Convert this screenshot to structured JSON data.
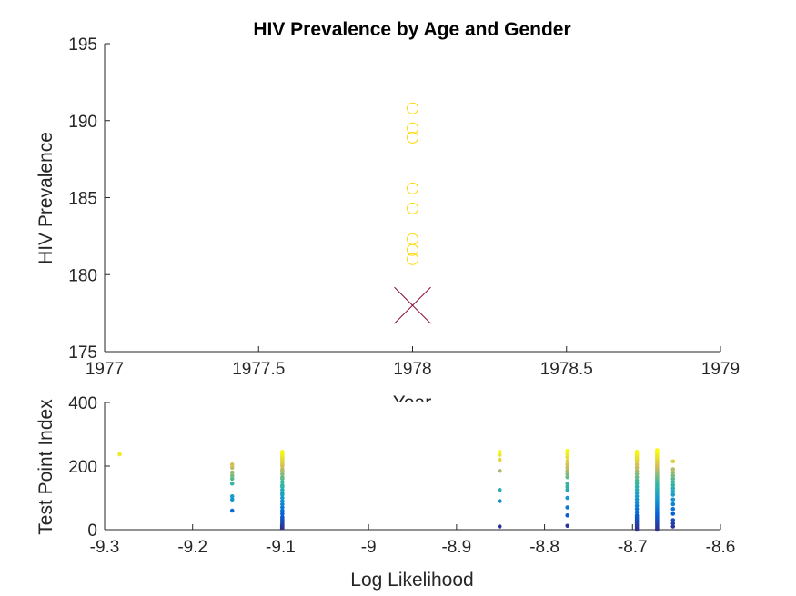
{
  "chart_data": [
    {
      "type": "scatter",
      "title": "HIV Prevalence by Age and Gender",
      "xlabel": "Year",
      "ylabel": "HIV Prevalence",
      "xlim": [
        1977,
        1979
      ],
      "ylim": [
        175,
        195
      ],
      "xticks": [
        "1977",
        "1977.5",
        "1978",
        "1978.5",
        "1979"
      ],
      "yticks": [
        "175",
        "180",
        "185",
        "190",
        "195"
      ],
      "grid": false,
      "series": [
        {
          "marker": "circle",
          "color": "#ffd700",
          "x": [
            1978,
            1978,
            1978,
            1978,
            1978,
            1978,
            1978,
            1978
          ],
          "y": [
            190.8,
            189.5,
            188.9,
            185.6,
            184.3,
            182.3,
            181.6,
            181.0
          ]
        },
        {
          "marker": "x",
          "color": "#8b0a3a",
          "x": [
            1978
          ],
          "y": [
            178.0
          ]
        }
      ]
    },
    {
      "type": "scatter",
      "title": "",
      "xlabel": "Log Likelihood",
      "ylabel": "Test Point Index",
      "xlim": [
        -9.3,
        -8.6
      ],
      "ylim": [
        0,
        400
      ],
      "xticks": [
        "-9.3",
        "-9.2",
        "-9.1",
        "-9",
        "-8.9",
        "-8.8",
        "-8.7",
        "-8.6"
      ],
      "yticks": [
        "0",
        "200",
        "400"
      ],
      "grid": false,
      "colormap": "parula",
      "color_range": [
        0,
        250
      ],
      "columns": [
        {
          "x": -9.283,
          "y": [
            237
          ]
        },
        {
          "x": -9.155,
          "y": [
            60,
            95,
            105,
            145,
            160,
            170,
            180,
            195,
            205
          ]
        },
        {
          "x": -9.098,
          "y": [
            5,
            10,
            15,
            20,
            25,
            30,
            35,
            40,
            50,
            60,
            70,
            80,
            90,
            100,
            110,
            115,
            125,
            135,
            140,
            150,
            160,
            165,
            175,
            185,
            190,
            200,
            205,
            210,
            215,
            220,
            225,
            230,
            235,
            240,
            245
          ]
        },
        {
          "x": -8.851,
          "y": [
            10,
            90,
            125,
            185,
            220,
            235,
            245
          ]
        },
        {
          "x": -8.774,
          "y": [
            12,
            45,
            70,
            100,
            125,
            135,
            145,
            165,
            175,
            185,
            195,
            205,
            215,
            228,
            238,
            248
          ]
        },
        {
          "x": -8.695,
          "y": [
            0,
            5,
            10,
            15,
            20,
            25,
            30,
            35,
            40,
            45,
            55,
            65,
            75,
            85,
            95,
            105,
            115,
            125,
            135,
            145,
            155,
            165,
            175,
            185,
            195,
            205,
            215,
            220,
            225,
            230,
            235,
            240,
            245
          ]
        },
        {
          "x": -8.672,
          "y": [
            0,
            5,
            10,
            15,
            20,
            25,
            30,
            35,
            40,
            45,
            50,
            55,
            60,
            65,
            70,
            75,
            80,
            85,
            90,
            95,
            100,
            105,
            110,
            115,
            120,
            125,
            130,
            135,
            140,
            145,
            150,
            155,
            160,
            165,
            170,
            175,
            180,
            185,
            190,
            195,
            200,
            205,
            210,
            215,
            220,
            225,
            230,
            235,
            240,
            245,
            250
          ]
        },
        {
          "x": -8.654,
          "y": [
            10,
            20,
            30,
            50,
            65,
            80,
            95,
            110,
            120,
            130,
            140,
            150,
            160,
            170,
            180,
            190,
            215
          ]
        }
      ]
    }
  ]
}
